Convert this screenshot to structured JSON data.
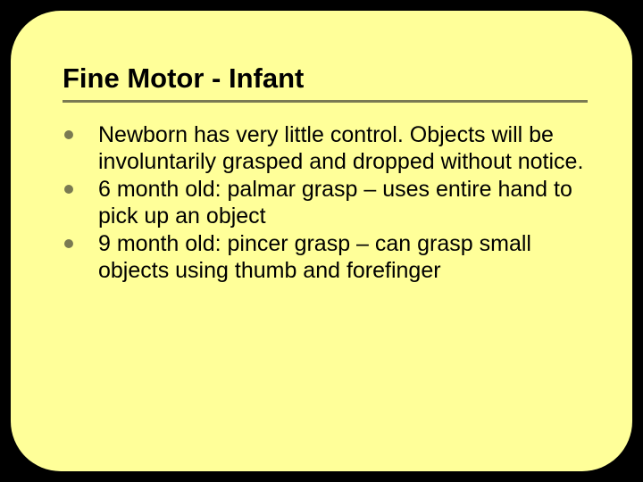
{
  "slide": {
    "background_color": "#ffff99",
    "outer_background": "#000000",
    "corner_radius": 56,
    "title": "Fine Motor - Infant",
    "title_fontsize": 31,
    "title_color": "#000000",
    "underline_color": "#7a7a52",
    "underline_thickness": 3,
    "bullet_color": "#7a7a52",
    "bullet_diameter": 10,
    "body_fontsize": 25,
    "body_color": "#000000",
    "bullets": [
      "Newborn has very little control. Objects will be involuntarily grasped and dropped without notice.",
      "6 month old: palmar grasp – uses entire hand to pick up an object",
      "9 month old: pincer grasp – can grasp small objects using thumb and forefinger"
    ]
  }
}
